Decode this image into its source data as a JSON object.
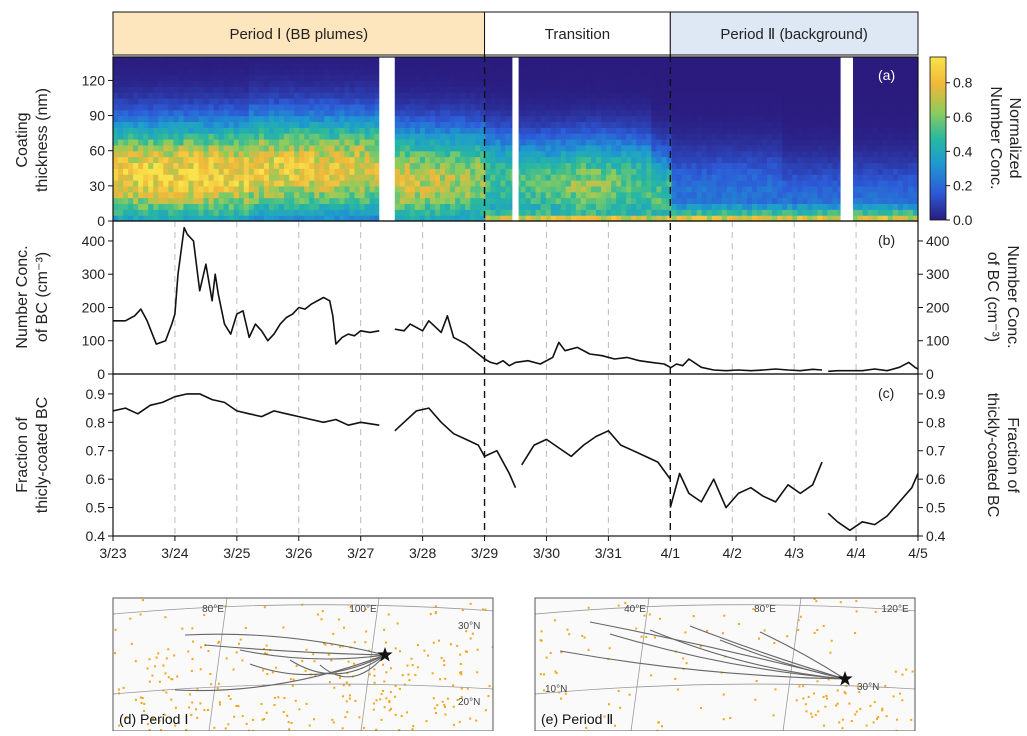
{
  "chart_data": [
    {
      "id": "a",
      "type": "heatmap",
      "panel_label": "(a)",
      "ylabel_lines": [
        "Coating",
        "thickness (nm)"
      ],
      "yticks": [
        "0",
        "30",
        "60",
        "90",
        "120"
      ],
      "ylim": [
        0,
        140
      ],
      "colorbar": {
        "ticks": [
          "0.0",
          "0.2",
          "0.4",
          "0.6",
          "0.8"
        ],
        "range": [
          0,
          0.95
        ],
        "label_lines": [
          "Normalized",
          "Number Conc."
        ],
        "colors": [
          "#2b1b7e",
          "#2d5bd8",
          "#1e9ad0",
          "#28b8a0",
          "#8ccc5c",
          "#f0b73a",
          "#f8e44a"
        ]
      },
      "gaps": [
        [
          4.3,
          4.55
        ],
        [
          6.45,
          6.55
        ],
        [
          11.75,
          11.95
        ]
      ],
      "profile_peak_nm": [
        40,
        45,
        35,
        30,
        20,
        10
      ],
      "note": "intensity highest 3/23-3/27 around 30-60 nm"
    },
    {
      "id": "b",
      "type": "line",
      "panel_label": "(b)",
      "ylabel_lines": [
        "Number Conc.",
        "of BC (cm⁻³)"
      ],
      "yticks": [
        "0",
        "100",
        "200",
        "300",
        "400"
      ],
      "ylim": [
        0,
        460
      ],
      "segments": [
        {
          "x": [
            0.0,
            0.2,
            0.35,
            0.45,
            0.55,
            0.7,
            0.85,
            0.95,
            1.0,
            1.05,
            1.15,
            1.2,
            1.3,
            1.4,
            1.5,
            1.6,
            1.65,
            1.7,
            1.8,
            1.9,
            2.0,
            2.1,
            2.2,
            2.3,
            2.4,
            2.5,
            2.6,
            2.7,
            2.8,
            2.9,
            3.0,
            3.1,
            3.2,
            3.4,
            3.5,
            3.55,
            3.6,
            3.7,
            3.8,
            3.9,
            4.0,
            4.15,
            4.3
          ],
          "y": [
            160,
            160,
            175,
            195,
            160,
            90,
            100,
            150,
            180,
            300,
            440,
            420,
            400,
            250,
            330,
            220,
            300,
            240,
            150,
            120,
            180,
            190,
            110,
            150,
            130,
            100,
            120,
            150,
            170,
            180,
            200,
            195,
            210,
            230,
            220,
            175,
            90,
            110,
            120,
            115,
            130,
            125,
            130
          ]
        },
        {
          "x": [
            4.55,
            4.7,
            4.8,
            5.0,
            5.1,
            5.3,
            5.4,
            5.5,
            5.6,
            5.7,
            5.8,
            5.9,
            6.0,
            6.1,
            6.2,
            6.3,
            6.4,
            6.5,
            6.7,
            6.9,
            7.1,
            7.2,
            7.3,
            7.5,
            7.7,
            7.9,
            8.1,
            8.3,
            8.5,
            8.7,
            8.9,
            9.0
          ],
          "y": [
            135,
            130,
            150,
            130,
            160,
            125,
            175,
            110,
            100,
            90,
            75,
            60,
            45,
            35,
            30,
            40,
            25,
            35,
            40,
            30,
            50,
            95,
            70,
            80,
            60,
            55,
            45,
            50,
            40,
            35,
            30,
            20
          ]
        },
        {
          "x": [
            9.0,
            9.1,
            9.2,
            9.3,
            9.5,
            9.7,
            9.9,
            10.1,
            10.3,
            10.5,
            10.7,
            10.9,
            11.1,
            11.3,
            11.45
          ],
          "y": [
            18,
            30,
            25,
            45,
            20,
            12,
            10,
            12,
            10,
            12,
            15,
            12,
            10,
            14,
            12
          ]
        },
        {
          "x": [
            11.55,
            11.7,
            11.9,
            12.1,
            12.3,
            12.5,
            12.7,
            12.85,
            12.95,
            13.0
          ],
          "y": [
            8,
            10,
            10,
            10,
            15,
            10,
            20,
            35,
            20,
            15
          ]
        }
      ]
    },
    {
      "id": "c",
      "type": "line",
      "panel_label": "(c)",
      "ylabel_lines": [
        "Fraction of",
        "thicly-coated BC"
      ],
      "ylabel_right_lines": [
        "Fraction of",
        "thickly-coated BC"
      ],
      "yticks": [
        "0.4",
        "0.5",
        "0.6",
        "0.7",
        "0.8",
        "0.9"
      ],
      "ylim": [
        0.4,
        0.97
      ],
      "segments": [
        {
          "x": [
            0.0,
            0.2,
            0.4,
            0.6,
            0.8,
            1.0,
            1.2,
            1.4,
            1.6,
            1.8,
            2.0,
            2.2,
            2.4,
            2.6,
            2.8,
            3.0,
            3.2,
            3.4,
            3.6,
            3.8,
            4.0,
            4.3
          ],
          "y": [
            0.84,
            0.85,
            0.83,
            0.86,
            0.87,
            0.89,
            0.9,
            0.9,
            0.88,
            0.87,
            0.84,
            0.83,
            0.82,
            0.84,
            0.83,
            0.82,
            0.81,
            0.8,
            0.81,
            0.79,
            0.8,
            0.79
          ]
        },
        {
          "x": [
            4.55,
            4.7,
            4.9,
            5.1,
            5.3,
            5.5,
            5.7,
            5.9,
            6.0,
            6.2,
            6.4,
            6.5
          ],
          "y": [
            0.77,
            0.8,
            0.84,
            0.85,
            0.8,
            0.76,
            0.74,
            0.72,
            0.68,
            0.7,
            0.62,
            0.57
          ]
        },
        {
          "x": [
            6.6,
            6.8,
            7.0,
            7.2,
            7.4,
            7.6,
            7.8,
            8.0,
            8.2,
            8.4,
            8.6,
            8.8,
            9.0
          ],
          "y": [
            0.65,
            0.72,
            0.74,
            0.71,
            0.68,
            0.72,
            0.75,
            0.77,
            0.72,
            0.7,
            0.68,
            0.66,
            0.6
          ]
        },
        {
          "x": [
            9.0,
            9.15,
            9.3,
            9.5,
            9.7,
            9.9,
            10.1,
            10.3,
            10.5,
            10.7,
            10.9,
            11.1,
            11.3,
            11.45
          ],
          "y": [
            0.5,
            0.62,
            0.55,
            0.52,
            0.6,
            0.5,
            0.55,
            0.57,
            0.54,
            0.52,
            0.58,
            0.55,
            0.58,
            0.66
          ]
        },
        {
          "x": [
            11.55,
            11.7,
            11.9,
            12.1,
            12.3,
            12.5,
            12.7,
            12.9,
            13.0
          ],
          "y": [
            0.48,
            0.45,
            0.42,
            0.45,
            0.44,
            0.47,
            0.52,
            0.57,
            0.62
          ]
        }
      ]
    }
  ],
  "x_axis": {
    "ticks": [
      "3/23",
      "3/24",
      "3/25",
      "3/26",
      "3/27",
      "3/28",
      "3/29",
      "3/30",
      "3/31",
      "4/1",
      "4/2",
      "4/3",
      "4/4",
      "4/5"
    ],
    "range": [
      0,
      13
    ],
    "period_dividers": [
      6,
      9
    ]
  },
  "periods": [
    {
      "label": "Period Ⅰ (BB plumes)",
      "from": 0,
      "to": 6,
      "color": "#fde6bd"
    },
    {
      "label": "Transition",
      "from": 6,
      "to": 9,
      "color": "#ffffff"
    },
    {
      "label": "Period Ⅱ (background)",
      "from": 9,
      "to": 13,
      "color": "#dde8f4"
    }
  ],
  "maps": [
    {
      "id": "d",
      "label": "(d)   Period Ⅰ",
      "meridians": [
        "80°E",
        "100°E"
      ],
      "parallels": [
        "30°N",
        "20°N"
      ]
    },
    {
      "id": "e",
      "label": "(e)  Period Ⅱ",
      "meridians": [
        "40°E",
        "80°E",
        "120°E"
      ],
      "parallels": [
        "10°N",
        "30°N"
      ]
    }
  ]
}
